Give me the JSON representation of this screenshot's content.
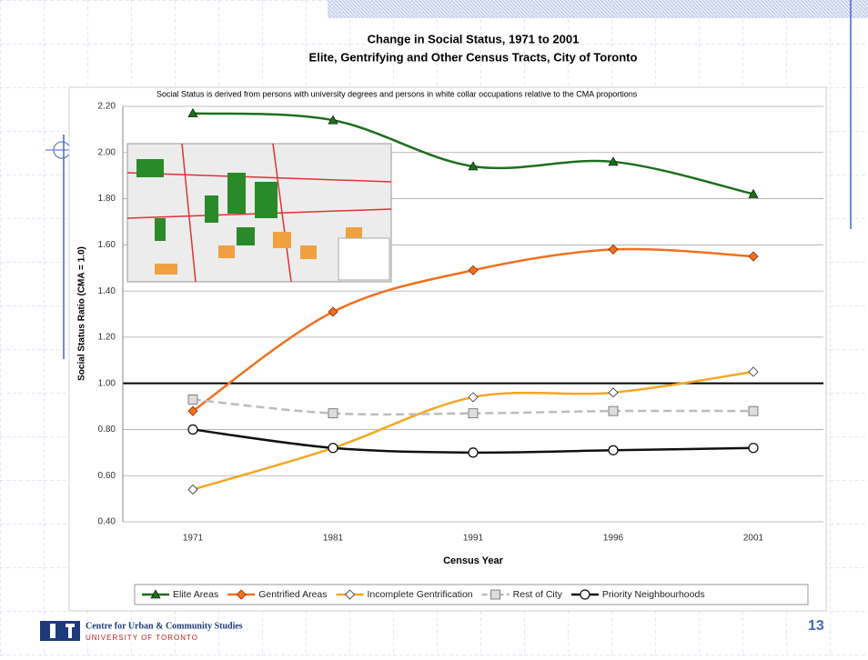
{
  "chart_data": {
    "type": "line",
    "title": "Change in Social Status, 1971 to 2001",
    "subtitle": "Elite, Gentrifying and Other Census Tracts, City of Toronto",
    "note": "Social Status is derived from persons with university degrees and persons in white collar occupations relative to the CMA proportions",
    "y_label": "Social Status Ratio (CMA = 1.0)",
    "x_label": "Census Year",
    "categories": [
      "1971",
      "1981",
      "1991",
      "1996",
      "2001"
    ],
    "ylim": [
      0.4,
      2.2
    ],
    "yticks": [
      {
        "value": 0.4,
        "label": "0.40"
      },
      {
        "value": 0.6,
        "label": "0.60"
      },
      {
        "value": 0.8,
        "label": "0.80"
      },
      {
        "value": 1.0,
        "label": "1.00"
      },
      {
        "value": 1.2,
        "label": "1.20"
      },
      {
        "value": 1.4,
        "label": "1.40"
      },
      {
        "value": 1.6,
        "label": "1.60"
      },
      {
        "value": 1.8,
        "label": "1.80"
      },
      {
        "value": 2.0,
        "label": "2.00"
      },
      {
        "value": 2.2,
        "label": "2.20"
      }
    ],
    "grid": true,
    "reference_line": 1,
    "legend": "bottom",
    "series": [
      {
        "name": "Elite Areas",
        "color": "#1e6e1e",
        "marker": "triangle",
        "values": [
          2.17,
          2.14,
          1.94,
          1.96,
          1.82
        ]
      },
      {
        "name": "Gentrified Areas",
        "color": "#f07020",
        "marker": "diamond",
        "values": [
          0.88,
          1.31,
          1.49,
          1.58,
          1.55
        ]
      },
      {
        "name": "Incomplete Gentrification",
        "color": "#f5a623",
        "marker": "diamond-open",
        "values": [
          0.54,
          0.72,
          0.94,
          0.96,
          1.05
        ]
      },
      {
        "name": "Rest of City",
        "color": "#bdbdbd",
        "marker": "square",
        "dash": true,
        "values": [
          0.93,
          0.87,
          0.87,
          0.88,
          0.88
        ]
      },
      {
        "name": "Priority Neighbourhoods",
        "color": "#111111",
        "marker": "circle-open",
        "values": [
          0.8,
          0.72,
          0.7,
          0.71,
          0.72
        ]
      }
    ]
  },
  "footer": {
    "org": "Centre for Urban & Community Studies",
    "university": "UNIVERSITY OF TORONTO",
    "page": "13"
  }
}
